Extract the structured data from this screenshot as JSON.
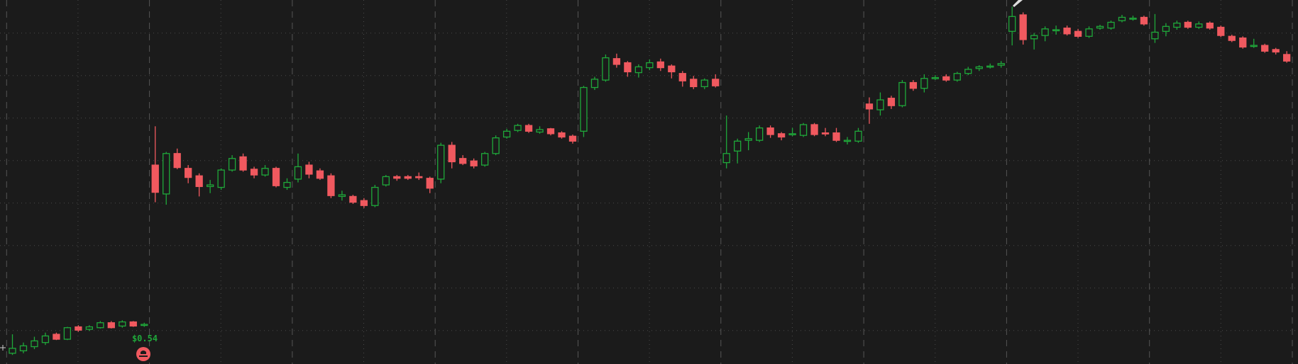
{
  "chart_data": {
    "type": "candlestick",
    "up_color": "#1fa83a",
    "down_color": "#f0595f",
    "ylim": [
      0.492,
      0.933
    ],
    "annotations": [
      {
        "text": "$0.54"
      }
    ],
    "series": [
      {
        "open": [
          0.505,
          0.508,
          0.513,
          0.518,
          0.528,
          0.522,
          0.537,
          0.534,
          0.536,
          0.542,
          0.538,
          0.543,
          0.539,
          0.733,
          0.698,
          0.747,
          0.729,
          0.72,
          0.707,
          0.706,
          0.727,
          0.743,
          0.728,
          0.721,
          0.729,
          0.706,
          0.716,
          0.733,
          0.726,
          0.72,
          0.695,
          0.695,
          0.69,
          0.684,
          0.709,
          0.719,
          0.719,
          0.719,
          0.717,
          0.716,
          0.757,
          0.741,
          0.738,
          0.733,
          0.747,
          0.767,
          0.775,
          0.781,
          0.773,
          0.777,
          0.772,
          0.768,
          0.774,
          0.827,
          0.836,
          0.862,
          0.857,
          0.845,
          0.851,
          0.858,
          0.853,
          0.844,
          0.837,
          0.828,
          0.837,
          0.736,
          0.75,
          0.763,
          0.763,
          0.778,
          0.771,
          0.77,
          0.769,
          0.782,
          0.772,
          0.772,
          0.762,
          0.762,
          0.807,
          0.8,
          0.814,
          0.805,
          0.833,
          0.826,
          0.838,
          0.84,
          0.836,
          0.844,
          0.85,
          0.852,
          0.854,
          0.895,
          0.915,
          0.886,
          0.89,
          0.896,
          0.899,
          0.895,
          0.889,
          0.899,
          0.899,
          0.908,
          0.91,
          0.912,
          0.886,
          0.895,
          0.9,
          0.906,
          0.9,
          0.905,
          0.9,
          0.889,
          0.887,
          0.877,
          0.878,
          0.873,
          0.867
        ],
        "high": [
          0.528,
          0.518,
          0.525,
          0.53,
          0.53,
          0.537,
          0.539,
          0.539,
          0.544,
          0.544,
          0.545,
          0.544,
          0.542,
          0.78,
          0.749,
          0.753,
          0.733,
          0.723,
          0.715,
          0.729,
          0.745,
          0.747,
          0.731,
          0.733,
          0.731,
          0.717,
          0.747,
          0.737,
          0.729,
          0.723,
          0.702,
          0.697,
          0.693,
          0.709,
          0.721,
          0.721,
          0.721,
          0.724,
          0.719,
          0.76,
          0.761,
          0.745,
          0.741,
          0.749,
          0.769,
          0.777,
          0.783,
          0.783,
          0.78,
          0.778,
          0.774,
          0.77,
          0.829,
          0.84,
          0.867,
          0.868,
          0.859,
          0.855,
          0.861,
          0.862,
          0.855,
          0.847,
          0.841,
          0.838,
          0.843,
          0.793,
          0.765,
          0.773,
          0.781,
          0.781,
          0.773,
          0.778,
          0.784,
          0.784,
          0.778,
          0.778,
          0.767,
          0.778,
          0.815,
          0.821,
          0.817,
          0.836,
          0.836,
          0.843,
          0.842,
          0.843,
          0.846,
          0.852,
          0.854,
          0.856,
          0.859,
          0.925,
          0.918,
          0.893,
          0.901,
          0.902,
          0.902,
          0.898,
          0.901,
          0.903,
          0.908,
          0.915,
          0.914,
          0.914,
          0.916,
          0.905,
          0.908,
          0.908,
          0.907,
          0.907,
          0.902,
          0.891,
          0.889,
          0.886,
          0.88,
          0.875,
          0.871
        ],
        "low": [
          0.503,
          0.505,
          0.51,
          0.515,
          0.521,
          0.521,
          0.531,
          0.532,
          0.535,
          0.535,
          0.536,
          0.537,
          0.537,
          0.688,
          0.685,
          0.728,
          0.711,
          0.695,
          0.699,
          0.703,
          0.725,
          0.725,
          0.717,
          0.719,
          0.706,
          0.703,
          0.712,
          0.717,
          0.715,
          0.693,
          0.69,
          0.686,
          0.681,
          0.682,
          0.707,
          0.714,
          0.715,
          0.715,
          0.699,
          0.711,
          0.729,
          0.733,
          0.729,
          0.731,
          0.745,
          0.765,
          0.773,
          0.772,
          0.771,
          0.769,
          0.765,
          0.759,
          0.767,
          0.824,
          0.834,
          0.851,
          0.84,
          0.839,
          0.848,
          0.847,
          0.838,
          0.828,
          0.825,
          0.825,
          0.827,
          0.729,
          0.735,
          0.751,
          0.761,
          0.766,
          0.763,
          0.768,
          0.767,
          0.768,
          0.768,
          0.761,
          0.758,
          0.76,
          0.783,
          0.793,
          0.801,
          0.803,
          0.823,
          0.821,
          0.836,
          0.834,
          0.834,
          0.842,
          0.847,
          0.85,
          0.851,
          0.878,
          0.879,
          0.873,
          0.883,
          0.891,
          0.89,
          0.887,
          0.887,
          0.897,
          0.897,
          0.906,
          0.908,
          0.902,
          0.881,
          0.889,
          0.897,
          0.898,
          0.898,
          0.897,
          0.888,
          0.882,
          0.874,
          0.875,
          0.869,
          0.867,
          0.857
        ],
        "close": [
          0.511,
          0.514,
          0.52,
          0.526,
          0.522,
          0.536,
          0.533,
          0.537,
          0.542,
          0.536,
          0.543,
          0.538,
          0.54,
          0.7,
          0.747,
          0.73,
          0.718,
          0.707,
          0.709,
          0.727,
          0.741,
          0.727,
          0.721,
          0.729,
          0.708,
          0.712,
          0.731,
          0.722,
          0.717,
          0.696,
          0.697,
          0.688,
          0.684,
          0.706,
          0.719,
          0.717,
          0.717,
          0.718,
          0.705,
          0.757,
          0.737,
          0.735,
          0.732,
          0.747,
          0.766,
          0.774,
          0.781,
          0.774,
          0.776,
          0.771,
          0.767,
          0.762,
          0.827,
          0.837,
          0.863,
          0.855,
          0.846,
          0.852,
          0.857,
          0.851,
          0.846,
          0.835,
          0.828,
          0.836,
          0.829,
          0.747,
          0.762,
          0.765,
          0.778,
          0.77,
          0.767,
          0.771,
          0.782,
          0.77,
          0.771,
          0.763,
          0.763,
          0.774,
          0.801,
          0.812,
          0.805,
          0.833,
          0.826,
          0.838,
          0.839,
          0.836,
          0.844,
          0.849,
          0.852,
          0.853,
          0.856,
          0.913,
          0.885,
          0.89,
          0.898,
          0.897,
          0.892,
          0.889,
          0.898,
          0.901,
          0.906,
          0.912,
          0.911,
          0.904,
          0.894,
          0.901,
          0.905,
          0.9,
          0.904,
          0.899,
          0.89,
          0.884,
          0.876,
          0.878,
          0.871,
          0.87,
          0.859
        ]
      }
    ]
  }
}
